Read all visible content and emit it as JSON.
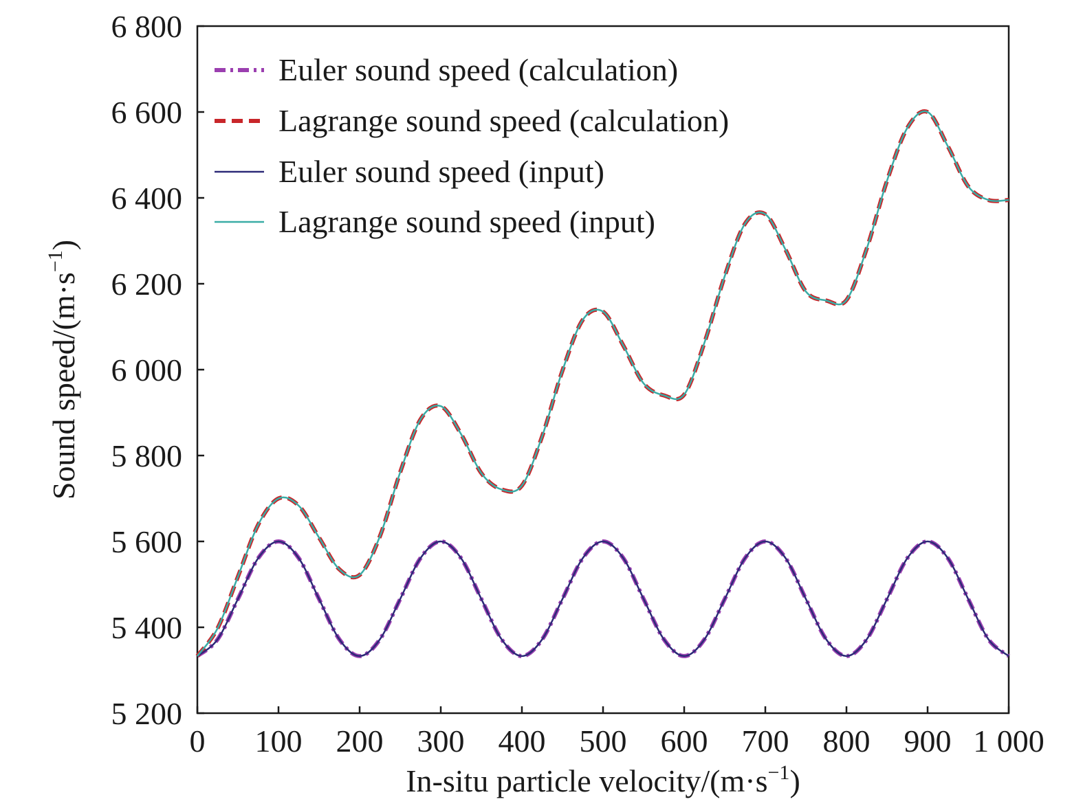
{
  "chart_data": {
    "type": "line",
    "xlabel": "In-situ particle velocity/(m·s",
    "xlabel_sup": "−1",
    "xlabel_close": ")",
    "ylabel": "Sound speed/(m·s",
    "ylabel_sup": "−1",
    "ylabel_close": ")",
    "xlim": [
      0,
      1000
    ],
    "ylim": [
      5200,
      6800
    ],
    "x_ticks": [
      0,
      100,
      200,
      300,
      400,
      500,
      600,
      700,
      800,
      900,
      1000
    ],
    "x_tick_labels": [
      "0",
      "100",
      "200",
      "300",
      "400",
      "500",
      "600",
      "700",
      "800",
      "900",
      "1 000"
    ],
    "y_ticks": [
      5200,
      5400,
      5600,
      5800,
      6000,
      6200,
      6400,
      6600,
      6800
    ],
    "y_tick_labels": [
      "5 200",
      "5 400",
      "5 600",
      "5 800",
      "6 000",
      "6 200",
      "6 400",
      "6 600",
      "6 800"
    ],
    "grid": false,
    "legend_position": "top-left",
    "x": [
      0,
      25,
      50,
      75,
      100,
      125,
      150,
      175,
      200,
      225,
      250,
      275,
      300,
      325,
      350,
      375,
      400,
      425,
      450,
      475,
      500,
      525,
      550,
      575,
      600,
      625,
      650,
      675,
      700,
      725,
      750,
      775,
      800,
      825,
      850,
      875,
      900,
      925,
      950,
      975,
      1000
    ],
    "series": [
      {
        "name": "Euler sound speed (calculation)",
        "style": "dashdot",
        "color": "#9b3fb0",
        "values": [
          5333,
          5372,
          5466,
          5561,
          5600,
          5561,
          5466,
          5372,
          5333,
          5372,
          5466,
          5561,
          5600,
          5561,
          5466,
          5372,
          5333,
          5372,
          5466,
          5561,
          5600,
          5561,
          5466,
          5372,
          5333,
          5372,
          5466,
          5561,
          5600,
          5561,
          5466,
          5372,
          5333,
          5372,
          5466,
          5561,
          5600,
          5561,
          5466,
          5372,
          5333
        ]
      },
      {
        "name": "Lagrange sound speed (calculation)",
        "style": "dashed",
        "color": "#c8262a",
        "values": [
          5333,
          5398,
          5518,
          5639,
          5700,
          5683,
          5609,
          5535,
          5522,
          5612,
          5761,
          5884,
          5915,
          5850,
          5759,
          5721,
          5730,
          5845,
          5998,
          6116,
          6135,
          6056,
          5968,
          5940,
          5942,
          6063,
          6218,
          6340,
          6362,
          6279,
          6182,
          6161,
          6162,
          6282,
          6440,
          6563,
          6600,
          6520,
          6427,
          6395,
          6395
        ]
      },
      {
        "name": "Euler sound speed (input)",
        "style": "solid",
        "color": "#2d2a78",
        "values": [
          5333,
          5372,
          5466,
          5561,
          5600,
          5561,
          5466,
          5372,
          5333,
          5372,
          5466,
          5561,
          5600,
          5561,
          5466,
          5372,
          5333,
          5372,
          5466,
          5561,
          5600,
          5561,
          5466,
          5372,
          5333,
          5372,
          5466,
          5561,
          5600,
          5561,
          5466,
          5372,
          5333,
          5372,
          5466,
          5561,
          5600,
          5561,
          5466,
          5372,
          5333
        ]
      },
      {
        "name": "Lagrange sound speed (input)",
        "style": "solid",
        "color": "#3aaca6",
        "values": [
          5333,
          5398,
          5518,
          5639,
          5700,
          5683,
          5609,
          5535,
          5522,
          5612,
          5761,
          5884,
          5915,
          5850,
          5759,
          5721,
          5730,
          5845,
          5998,
          6116,
          6135,
          6056,
          5968,
          5940,
          5942,
          6063,
          6218,
          6340,
          6362,
          6279,
          6182,
          6161,
          6162,
          6282,
          6440,
          6563,
          6600,
          6520,
          6427,
          6395,
          6395
        ]
      }
    ]
  }
}
